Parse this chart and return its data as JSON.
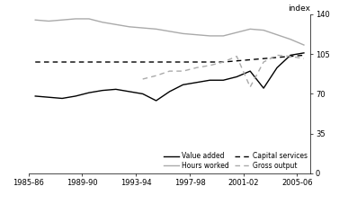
{
  "ylabel": "index",
  "xlim": [
    1985,
    2006
  ],
  "ylim": [
    0,
    140
  ],
  "yticks": [
    0,
    35,
    70,
    105,
    140
  ],
  "xtick_labels": [
    "1985-86",
    "1989-90",
    "1993-94",
    "1997-98",
    "2001-02",
    "2005-06"
  ],
  "xtick_positions": [
    1985,
    1989,
    1993,
    1997,
    2001,
    2005
  ],
  "legend_entries": [
    "Value added",
    "Hours worked",
    "Capital services",
    "Gross output"
  ],
  "value_added_x": [
    1985.5,
    1986.5,
    1987.5,
    1988.5,
    1989.5,
    1990.5,
    1991.5,
    1992.5,
    1993.5,
    1994.5,
    1995.5,
    1996.5,
    1997.5,
    1998.5,
    1999.5,
    2000.5,
    2001.5,
    2002.5,
    2003.5,
    2004.5,
    2005.5
  ],
  "value_added_y": [
    68,
    67,
    66,
    68,
    71,
    73,
    74,
    72,
    70,
    64,
    72,
    78,
    80,
    82,
    82,
    85,
    90,
    75,
    93,
    104,
    106
  ],
  "hours_worked_x": [
    1985.5,
    1986.5,
    1987.5,
    1988.5,
    1989.5,
    1990.5,
    1991.5,
    1992.5,
    1993.5,
    1994.5,
    1995.5,
    1996.5,
    1997.5,
    1998.5,
    1999.5,
    2000.5,
    2001.5,
    2002.5,
    2003.5,
    2004.5,
    2005.5
  ],
  "hours_worked_y": [
    135,
    134,
    135,
    136,
    136,
    133,
    131,
    129,
    128,
    127,
    125,
    123,
    122,
    121,
    121,
    124,
    127,
    126,
    122,
    118,
    113
  ],
  "capital_services_x": [
    1985.5,
    1986.5,
    1987.5,
    1988.5,
    1989.5,
    1990.5,
    1991.5,
    1992.5,
    1993.5,
    1994.5,
    1995.5,
    1996.5,
    1997.5,
    1998.5,
    1999.5,
    2000.5,
    2001.5,
    2002.5,
    2003.5,
    2004.5,
    2005.5
  ],
  "capital_services_y": [
    98,
    98,
    98,
    98,
    98,
    98,
    98,
    98,
    98,
    98,
    98,
    98,
    98,
    98,
    98,
    99,
    100,
    101,
    102,
    103,
    104
  ],
  "gross_output_x": [
    1993.5,
    1994.5,
    1995.5,
    1996.5,
    1997.5,
    1998.5,
    1999.5,
    2000.5,
    2001.5,
    2002.5,
    2003.5,
    2004.5,
    2005.5
  ],
  "gross_output_y": [
    83,
    86,
    90,
    90,
    93,
    95,
    98,
    103,
    76,
    98,
    104,
    103,
    101
  ],
  "color_black": "#000000",
  "color_grey": "#aaaaaa",
  "linewidth": 1.0
}
